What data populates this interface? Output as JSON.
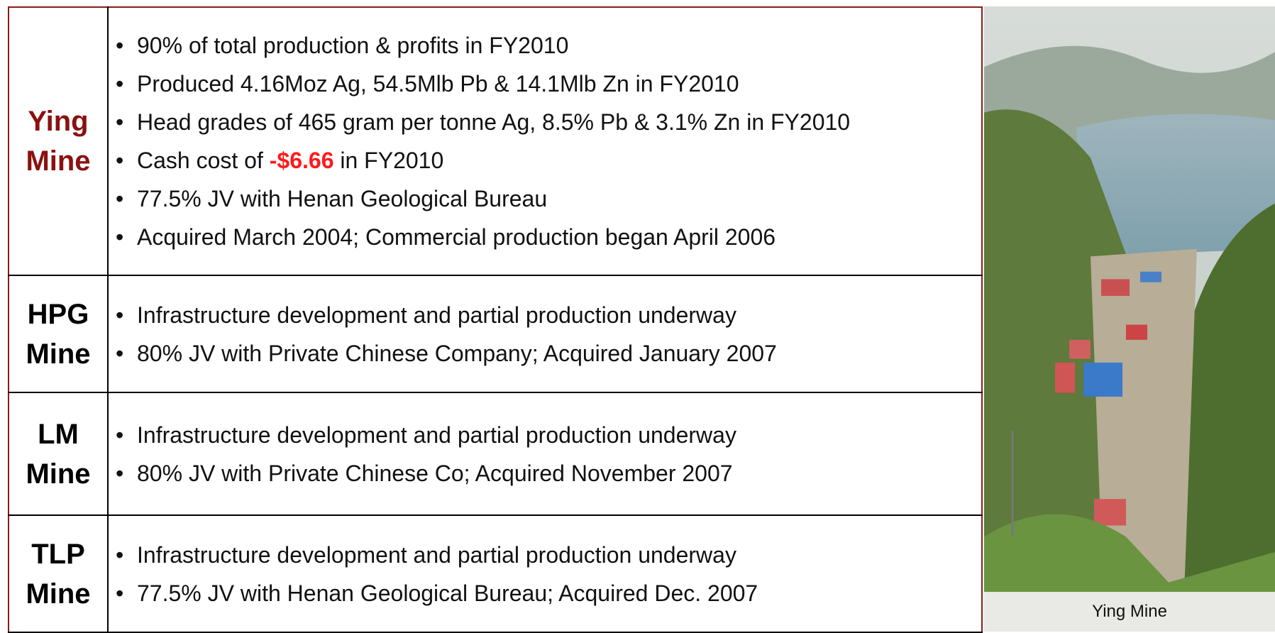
{
  "table": {
    "rows": [
      {
        "mine": [
          "Ying",
          "Mine"
        ],
        "highlight": true,
        "bullets": [
          [
            "90% of total production & profits in FY2010"
          ],
          [
            "Produced 4.16Moz Ag, 54.5Mlb Pb & 14.1Mlb Zn in FY2010"
          ],
          [
            "Head grades of 465 gram per tonne Ag, 8.5% Pb & 3.1% Zn in FY2010"
          ],
          [
            "Cash cost of ",
            "-$6.66",
            " in FY2010"
          ],
          [
            "77.5% JV with Henan Geological Bureau"
          ],
          [
            "Acquired March 2004; Commercial production began April 2006"
          ]
        ]
      },
      {
        "mine": [
          "HPG",
          "Mine"
        ],
        "highlight": false,
        "bullets": [
          [
            "Infrastructure development and partial production underway"
          ],
          [
            "80% JV with Private Chinese Company; Acquired January 2007"
          ]
        ]
      },
      {
        "mine": [
          "LM",
          "Mine"
        ],
        "highlight": false,
        "bullets": [
          [
            "Infrastructure development and partial production underway"
          ],
          [
            "80% JV with Private Chinese Co; Acquired November 2007"
          ]
        ]
      },
      {
        "mine": [
          "TLP",
          "Mine"
        ],
        "highlight": false,
        "bullets": [
          [
            "Infrastructure development and partial production underway"
          ],
          [
            "77.5% JV with Henan Geological Bureau; Acquired Dec. 2007"
          ]
        ]
      }
    ]
  },
  "photo": {
    "caption": "Ying Mine"
  }
}
